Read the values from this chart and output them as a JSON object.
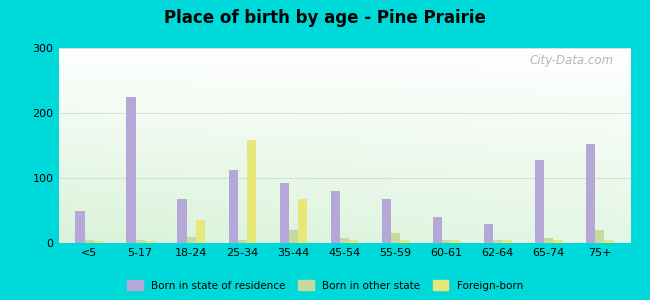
{
  "title": "Place of birth by age - Pine Prairie",
  "categories": [
    "<5",
    "5-17",
    "18-24",
    "25-34",
    "35-44",
    "45-54",
    "55-59",
    "60-61",
    "62-64",
    "65-74",
    "75+"
  ],
  "born_in_state": [
    50,
    225,
    68,
    112,
    93,
    80,
    67,
    40,
    30,
    128,
    153
  ],
  "born_in_other_state": [
    5,
    4,
    10,
    5,
    20,
    8,
    15,
    5,
    4,
    7,
    20
  ],
  "foreign_born": [
    3,
    3,
    35,
    158,
    68,
    5,
    5,
    5,
    5,
    5,
    5
  ],
  "bar_colors": {
    "born_in_state": "#b5a8d9",
    "born_in_other_state": "#c8d9a0",
    "foreign_born": "#e8e87a"
  },
  "ylim": [
    0,
    300
  ],
  "yticks": [
    0,
    100,
    200,
    300
  ],
  "figure_background": "#00d9d9",
  "watermark": "City-Data.com",
  "legend_labels": [
    "Born in state of residence",
    "Born in other state",
    "Foreign-born"
  ]
}
